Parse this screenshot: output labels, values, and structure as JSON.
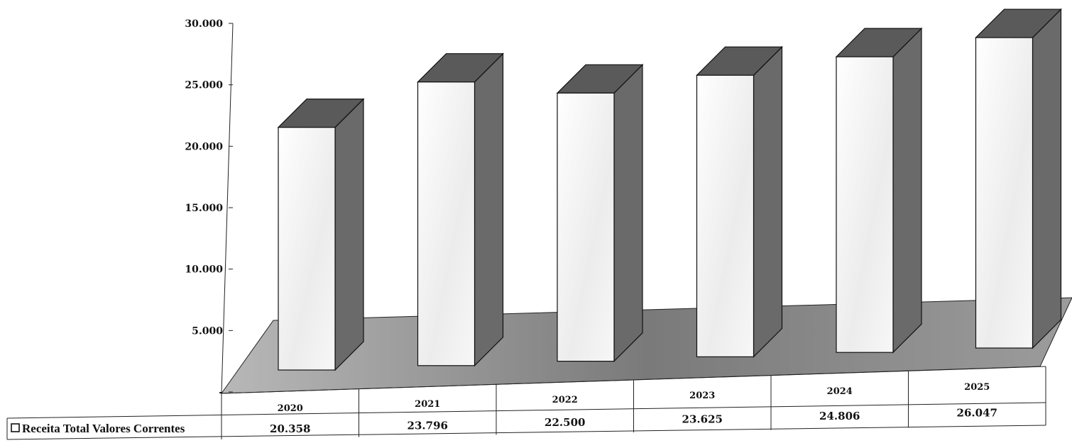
{
  "chart_data": {
    "type": "bar",
    "categories": [
      "2020",
      "2021",
      "2022",
      "2023",
      "2024",
      "2025"
    ],
    "series": [
      {
        "name": "Receita Total Valores Correntes",
        "values": [
          20358,
          23796,
          22500,
          23625,
          24806,
          26047
        ]
      }
    ],
    "value_labels": [
      "20.358",
      "23.796",
      "22.500",
      "23.625",
      "24.806",
      "26.047"
    ],
    "yticks": [
      "-",
      "5.000",
      "10.000",
      "15.000",
      "20.000",
      "25.000",
      "30.000"
    ],
    "ylim": [
      0,
      30000
    ],
    "title": "",
    "xlabel": "",
    "ylabel": "",
    "legend_position": "left-of-data-table",
    "colors": {
      "bar_front": "#f4f4f4",
      "bar_side": "#6a6a6a",
      "bar_top": "#5a5a5a",
      "floor": "#8a8a8a"
    }
  }
}
